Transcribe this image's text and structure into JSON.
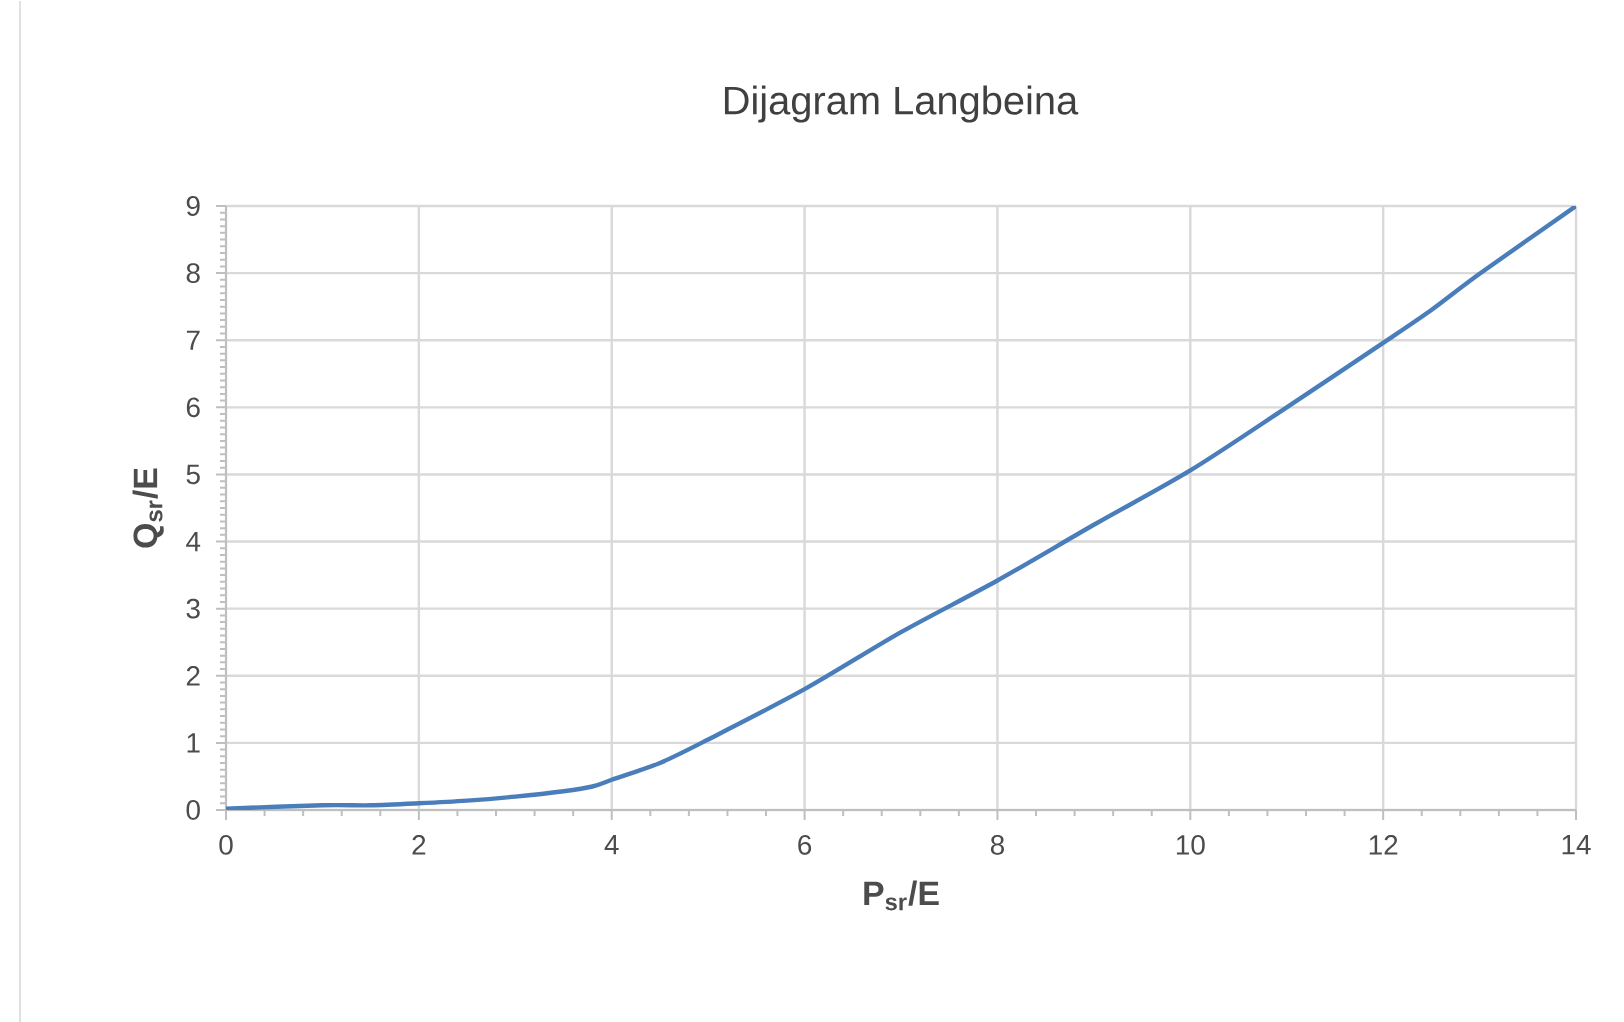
{
  "chart_data": {
    "type": "line",
    "title": "Dijagram Langbeina",
    "xlabel": "P$_{sr}$/E",
    "ylabel": "Q$_{sr}$/E",
    "x": [
      0,
      1,
      1.5,
      2,
      2.5,
      3,
      3.5,
      3.8,
      4,
      4.5,
      5,
      6,
      7,
      8,
      9,
      10,
      11,
      12,
      12.5,
      13,
      14
    ],
    "series": [
      {
        "color": "#4a7ebb",
        "values": [
          0.02,
          0.07,
          0.07,
          0.1,
          0.14,
          0.2,
          0.28,
          0.35,
          0.45,
          0.7,
          1.05,
          1.8,
          2.65,
          3.42,
          4.25,
          5.06,
          6.0,
          6.96,
          7.45,
          7.99,
          9.0
        ]
      }
    ],
    "xlim": [
      0,
      14
    ],
    "ylim": [
      0,
      9
    ],
    "xticks": [
      0,
      2,
      4,
      6,
      8,
      10,
      12,
      14
    ],
    "yticks": [
      0,
      1,
      2,
      3,
      4,
      5,
      6,
      7,
      8,
      9
    ],
    "grid": true
  }
}
